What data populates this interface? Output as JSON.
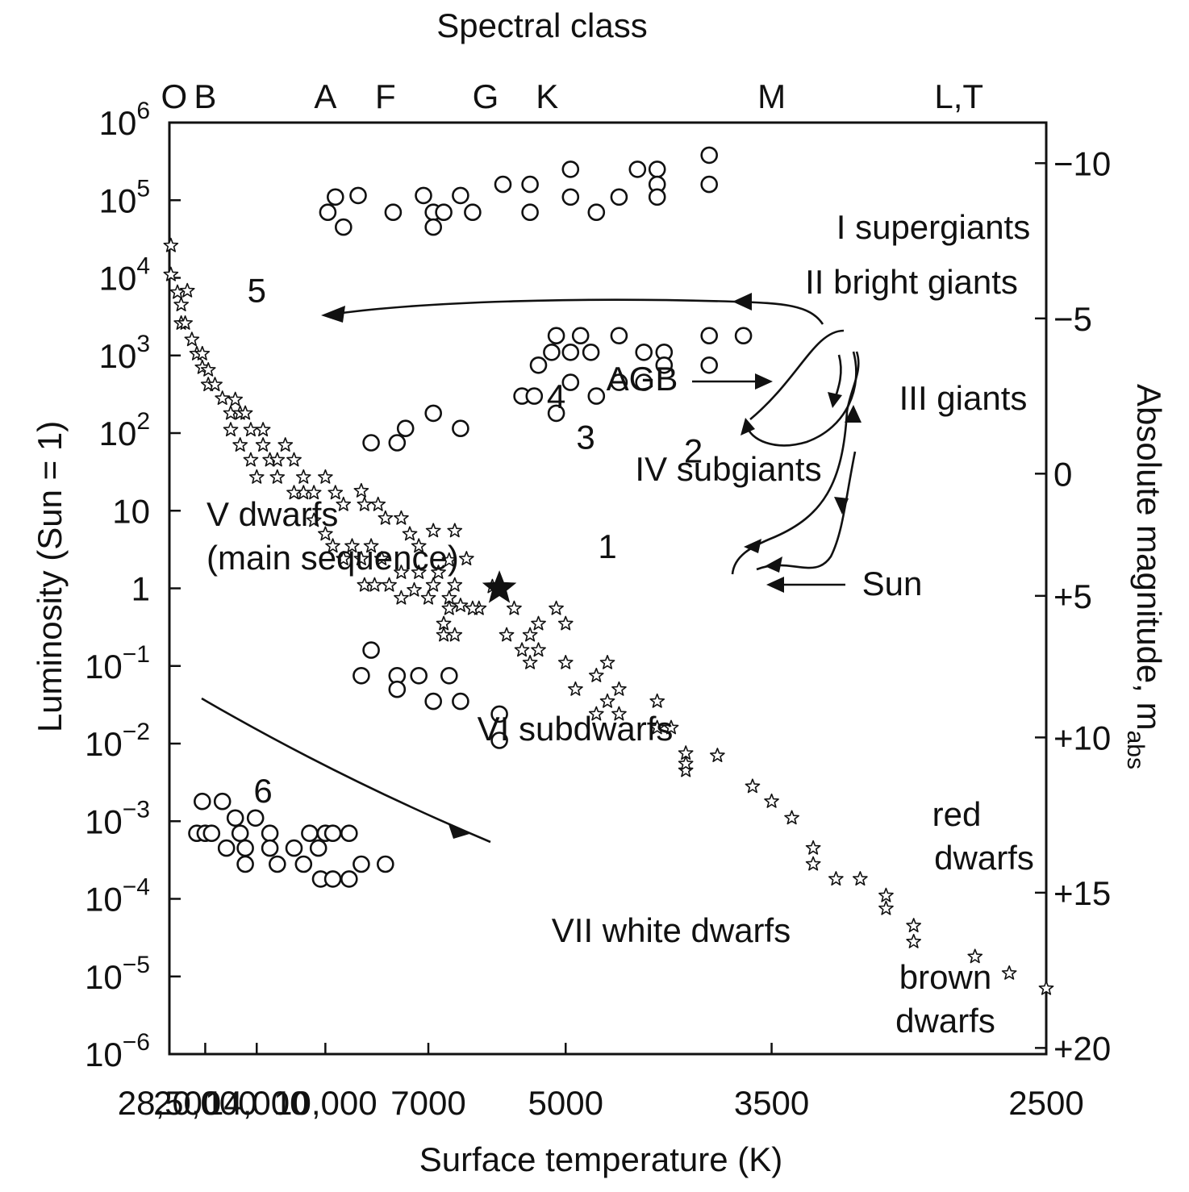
{
  "chart_data": {
    "type": "scatter",
    "title": "Spectral class",
    "xlabel": "Surface temperature (K)",
    "ylabel": "Luminosity (Sun = 1)",
    "y2label_main": "Absolute magnitude, m",
    "y2label_sub": "abs",
    "x_scale": "reciprocal temperature (hotter to the left)",
    "xlim": [
      28500,
      2500
    ],
    "y_scale": "log",
    "ylim": [
      1e-06,
      1000000.0
    ],
    "x_ticks": [
      {
        "value": 28500,
        "label": "28,500"
      },
      {
        "value": 20000,
        "label": "20,000"
      },
      {
        "value": 14000,
        "label": "14,000"
      },
      {
        "value": 10000,
        "label": "10,000"
      },
      {
        "value": 7000,
        "label": "7000"
      },
      {
        "value": 5000,
        "label": "5000"
      },
      {
        "value": 3500,
        "label": "3500"
      },
      {
        "value": 2500,
        "label": "2500"
      }
    ],
    "y_ticks": [
      {
        "value": 1000000.0,
        "base": "10",
        "exp": "6"
      },
      {
        "value": 100000.0,
        "base": "10",
        "exp": "5"
      },
      {
        "value": 10000.0,
        "base": "10",
        "exp": "4"
      },
      {
        "value": 1000.0,
        "base": "10",
        "exp": "3"
      },
      {
        "value": 100.0,
        "base": "10",
        "exp": "2"
      },
      {
        "value": 10,
        "base": "10",
        "exp": ""
      },
      {
        "value": 1,
        "base": "1",
        "exp": ""
      },
      {
        "value": 0.1,
        "base": "10",
        "exp": "−1"
      },
      {
        "value": 0.01,
        "base": "10",
        "exp": "−2"
      },
      {
        "value": 0.001,
        "base": "10",
        "exp": "−3"
      },
      {
        "value": 0.0001,
        "base": "10",
        "exp": "−4"
      },
      {
        "value": 1e-05,
        "base": "10",
        "exp": "−5"
      },
      {
        "value": 1e-06,
        "base": "10",
        "exp": "−6"
      }
    ],
    "right_ticks": [
      {
        "luminosity": 300000,
        "label": "−10"
      },
      {
        "luminosity": 3000,
        "label": "−5"
      },
      {
        "luminosity": 30,
        "label": "0"
      },
      {
        "luminosity": 0.8,
        "label": "+5"
      },
      {
        "luminosity": 0.012,
        "label": "+10"
      },
      {
        "luminosity": 0.00012,
        "label": "+15"
      },
      {
        "luminosity": 1.2e-06,
        "label": "+20"
      }
    ],
    "spectral_classes": [
      {
        "label": "O",
        "temp": 27000
      },
      {
        "label": "B",
        "temp": 20000
      },
      {
        "label": "A",
        "temp": 10000
      },
      {
        "label": "F",
        "temp": 8000
      },
      {
        "label": "G",
        "temp": 6000
      },
      {
        "label": "K",
        "temp": 5200
      },
      {
        "label": "M",
        "temp": 3500
      },
      {
        "label": "L,T",
        "temp": 2750
      }
    ],
    "series": [
      {
        "marker": "circle",
        "points": [
          [
            9900,
            70000
          ],
          [
            9600,
            110000
          ],
          [
            9300,
            45000
          ],
          [
            8800,
            115000
          ],
          [
            7800,
            70000
          ],
          [
            7100,
            115000
          ],
          [
            6900,
            70000
          ],
          [
            6900,
            45000
          ],
          [
            6700,
            70000
          ],
          [
            6400,
            115000
          ],
          [
            6200,
            70000
          ],
          [
            5750,
            160000
          ],
          [
            5400,
            160000
          ],
          [
            5400,
            70000
          ],
          [
            4950,
            250000
          ],
          [
            4950,
            110000
          ],
          [
            4700,
            70000
          ],
          [
            4500,
            110000
          ],
          [
            4350,
            250000
          ],
          [
            4200,
            250000
          ],
          [
            4200,
            160000
          ],
          [
            4200,
            110000
          ],
          [
            3850,
            380000
          ],
          [
            3850,
            160000
          ],
          [
            5100,
            1800
          ],
          [
            4850,
            1800
          ],
          [
            4500,
            1800
          ],
          [
            5150,
            1100
          ],
          [
            4950,
            1100
          ],
          [
            4750,
            1100
          ],
          [
            4300,
            1100
          ],
          [
            4150,
            1100
          ],
          [
            5300,
            750
          ],
          [
            4950,
            450
          ],
          [
            4500,
            450
          ],
          [
            4300,
            450
          ],
          [
            4150,
            750
          ],
          [
            5500,
            300
          ],
          [
            5350,
            300
          ],
          [
            4700,
            300
          ],
          [
            5100,
            180
          ],
          [
            3850,
            1800
          ],
          [
            3650,
            1800
          ],
          [
            3850,
            750
          ],
          [
            8400,
            75
          ],
          [
            7700,
            75
          ],
          [
            7500,
            115
          ],
          [
            6900,
            180
          ],
          [
            6400,
            115
          ],
          [
            8400,
            0.16
          ],
          [
            8700,
            0.075
          ],
          [
            7700,
            0.075
          ],
          [
            7700,
            0.05
          ],
          [
            7200,
            0.075
          ],
          [
            6600,
            0.075
          ],
          [
            6900,
            0.035
          ],
          [
            6400,
            0.035
          ],
          [
            5800,
            0.024
          ],
          [
            5800,
            0.011
          ],
          [
            20500,
            0.0018
          ],
          [
            17500,
            0.0018
          ],
          [
            21500,
            0.0007
          ],
          [
            20000,
            0.0007
          ],
          [
            19000,
            0.0007
          ],
          [
            17000,
            0.00045
          ],
          [
            16000,
            0.0011
          ],
          [
            15500,
            0.0007
          ],
          [
            15000,
            0.00045
          ],
          [
            15000,
            0.00028
          ],
          [
            14100,
            0.0011
          ],
          [
            13000,
            0.0007
          ],
          [
            13000,
            0.00045
          ],
          [
            12500,
            0.00028
          ],
          [
            11500,
            0.00045
          ],
          [
            11000,
            0.00028
          ],
          [
            10700,
            0.0007
          ],
          [
            10300,
            0.00045
          ],
          [
            10200,
            0.00018
          ],
          [
            10000,
            0.0007
          ],
          [
            9700,
            0.0007
          ],
          [
            9700,
            0.00018
          ],
          [
            9100,
            0.0007
          ],
          [
            9100,
            0.00018
          ],
          [
            8700,
            0.00028
          ],
          [
            8000,
            0.00028
          ]
        ]
      },
      {
        "marker": "star",
        "points": [
          [
            28000,
            26000
          ],
          [
            28000,
            11000
          ],
          [
            26000,
            6500
          ],
          [
            25000,
            4500
          ],
          [
            25000,
            2600
          ],
          [
            23500,
            6800
          ],
          [
            24000,
            2600
          ],
          [
            22500,
            1600
          ],
          [
            21500,
            1050
          ],
          [
            20500,
            1050
          ],
          [
            20500,
            700
          ],
          [
            19500,
            420
          ],
          [
            19500,
            650
          ],
          [
            18500,
            420
          ],
          [
            17500,
            280
          ],
          [
            16500,
            180
          ],
          [
            16500,
            110
          ],
          [
            15500,
            180
          ],
          [
            16000,
            270
          ],
          [
            15000,
            180
          ],
          [
            14500,
            110
          ],
          [
            13500,
            110
          ],
          [
            13500,
            70
          ],
          [
            13000,
            45
          ],
          [
            15500,
            70
          ],
          [
            14500,
            45
          ],
          [
            14000,
            27
          ],
          [
            12500,
            45
          ],
          [
            12000,
            70
          ],
          [
            11500,
            45
          ],
          [
            11000,
            27
          ],
          [
            11000,
            17
          ],
          [
            10500,
            17
          ],
          [
            12500,
            27
          ],
          [
            11500,
            17
          ],
          [
            10000,
            27
          ],
          [
            9600,
            17
          ],
          [
            9300,
            12
          ],
          [
            8600,
            12
          ],
          [
            8700,
            18
          ],
          [
            8200,
            12
          ],
          [
            8000,
            8
          ],
          [
            7600,
            8
          ],
          [
            7400,
            5
          ],
          [
            7200,
            3.5
          ],
          [
            6900,
            5.5
          ],
          [
            6500,
            5.5
          ],
          [
            6300,
            2.4
          ],
          [
            10500,
            7.5
          ],
          [
            10000,
            5
          ],
          [
            9700,
            3.5
          ],
          [
            9300,
            2.4
          ],
          [
            9000,
            3.5
          ],
          [
            8700,
            2.4
          ],
          [
            8400,
            3.5
          ],
          [
            8100,
            2.4
          ],
          [
            7900,
            1.1
          ],
          [
            7600,
            1.6
          ],
          [
            7300,
            0.95
          ],
          [
            7000,
            0.75
          ],
          [
            6800,
            1.6
          ],
          [
            6600,
            2.3
          ],
          [
            6500,
            1.1
          ],
          [
            6400,
            0.6
          ],
          [
            6100,
            0.55
          ],
          [
            5900,
            1.05
          ],
          [
            6600,
            0.55
          ],
          [
            6700,
            0.35
          ],
          [
            6700,
            0.25
          ],
          [
            6500,
            0.25
          ],
          [
            6200,
            0.55
          ],
          [
            8600,
            1.1
          ],
          [
            8300,
            1.1
          ],
          [
            7600,
            0.75
          ],
          [
            7200,
            1.6
          ],
          [
            6900,
            1.1
          ],
          [
            6600,
            0.75
          ],
          [
            5600,
            0.55
          ],
          [
            5100,
            0.55
          ],
          [
            5300,
            0.35
          ],
          [
            5000,
            0.35
          ],
          [
            5400,
            0.25
          ],
          [
            5300,
            0.16
          ],
          [
            5500,
            0.16
          ],
          [
            5400,
            0.11
          ],
          [
            5700,
            0.25
          ],
          [
            5000,
            0.11
          ],
          [
            4700,
            0.075
          ],
          [
            4600,
            0.11
          ],
          [
            4900,
            0.05
          ],
          [
            4700,
            0.024
          ],
          [
            4600,
            0.035
          ],
          [
            4500,
            0.05
          ],
          [
            4500,
            0.024
          ],
          [
            4200,
            0.035
          ],
          [
            4100,
            0.016
          ],
          [
            4200,
            0.016
          ],
          [
            4000,
            0.0075
          ],
          [
            4000,
            0.0045
          ],
          [
            4000,
            0.0055
          ],
          [
            3800,
            0.007
          ],
          [
            3600,
            0.0028
          ],
          [
            3500,
            0.0018
          ],
          [
            3400,
            0.0011
          ],
          [
            3300,
            0.00045
          ],
          [
            3300,
            0.00028
          ],
          [
            3200,
            0.00018
          ],
          [
            3100,
            0.00018
          ],
          [
            3000,
            0.00011
          ],
          [
            3000,
            7.5e-05
          ],
          [
            2900,
            4.5e-05
          ],
          [
            2900,
            2.8e-05
          ],
          [
            2700,
            1.8e-05
          ],
          [
            2600,
            1.1e-05
          ],
          [
            2500,
            7e-06
          ]
        ]
      }
    ],
    "sun": {
      "label": "Sun",
      "temp": 5800,
      "luminosity": 1
    },
    "tracks": [
      {
        "label": "1",
        "temp": 4600,
        "luminosity": 3.5
      },
      {
        "label": "2",
        "temp": 3950,
        "luminosity": 60
      },
      {
        "label": "3",
        "temp": 4800,
        "luminosity": 90
      },
      {
        "label": "4",
        "temp": 5100,
        "luminosity": 300
      },
      {
        "label": "5",
        "temp": 14000,
        "luminosity": 7000
      },
      {
        "label": "6",
        "temp": 13500,
        "luminosity": 0.0025
      }
    ],
    "region_labels": [
      {
        "text": "I supergiants"
      },
      {
        "text": "II bright giants"
      },
      {
        "text": "III giants"
      },
      {
        "text": "AGB"
      },
      {
        "text": "IV subgiants"
      },
      {
        "text": "V dwarfs"
      },
      {
        "text": "(main sequence)"
      },
      {
        "text": "VI subdwarfs"
      },
      {
        "text": "VII white dwarfs"
      },
      {
        "text": "red"
      },
      {
        "text": "dwarfs"
      },
      {
        "text": "brown"
      },
      {
        "text": "dwarfs"
      }
    ]
  }
}
